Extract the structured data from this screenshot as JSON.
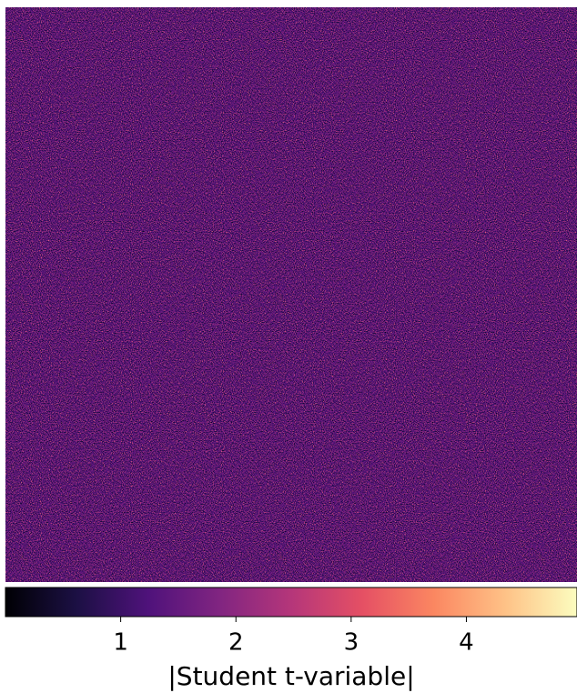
{
  "chart_data": {
    "type": "heatmap",
    "colorbar": {
      "label": "|Student t-variable|",
      "lim": [
        0,
        4.96
      ],
      "ticks": [
        1,
        2,
        3,
        4
      ],
      "colormap": "magma"
    }
  }
}
